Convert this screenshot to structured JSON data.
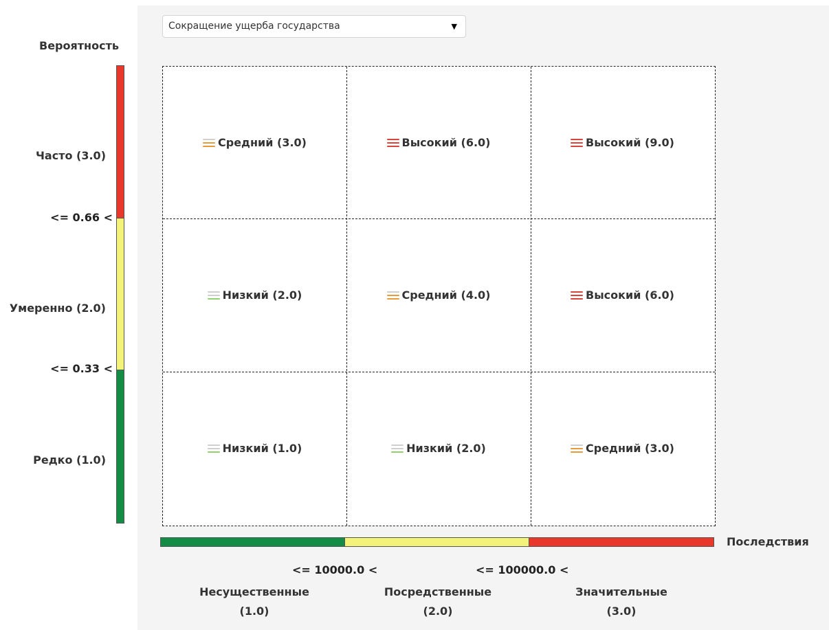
{
  "selector": {
    "value": "Сокращение ущерба государства",
    "caret": "▼"
  },
  "colors": {
    "high": "#e8382c",
    "medium": "#f3f37a",
    "low": "#138c45",
    "icon_high": "#d9433a",
    "icon_medium": "#e89a38",
    "icon_low": "#8fd16a"
  },
  "probability": {
    "title": "Вероятность",
    "levels": [
      {
        "label": "Часто (3.0)"
      },
      {
        "label": "Умеренно (2.0)"
      },
      {
        "label": "Редко (1.0)"
      }
    ],
    "thresholds": [
      "<= 0.66 <",
      "<= 0.33 <"
    ]
  },
  "consequence": {
    "title": "Последствия",
    "levels": [
      {
        "name": "Несущественные",
        "value": "(1.0)"
      },
      {
        "name": "Посредственные",
        "value": "(2.0)"
      },
      {
        "name": "Значительные",
        "value": "(3.0)"
      }
    ],
    "thresholds": [
      "<= 10000.0 <",
      "<= 100000.0 <"
    ]
  },
  "matrix": [
    [
      {
        "label": "Средний (3.0)",
        "level": "medium",
        "icon": "medium-risk-icon"
      },
      {
        "label": "Высокий (6.0)",
        "level": "high",
        "icon": "high-risk-icon"
      },
      {
        "label": "Высокий (9.0)",
        "level": "high",
        "icon": "high-risk-icon"
      }
    ],
    [
      {
        "label": "Низкий (2.0)",
        "level": "low",
        "icon": "low-risk-icon"
      },
      {
        "label": "Средний (4.0)",
        "level": "medium",
        "icon": "medium-risk-icon"
      },
      {
        "label": "Высокий (6.0)",
        "level": "high",
        "icon": "high-risk-icon"
      }
    ],
    [
      {
        "label": "Низкий (1.0)",
        "level": "low",
        "icon": "low-risk-icon"
      },
      {
        "label": "Низкий (2.0)",
        "level": "low",
        "icon": "low-risk-icon"
      },
      {
        "label": "Средний (3.0)",
        "level": "medium",
        "icon": "medium-risk-icon"
      }
    ]
  ]
}
